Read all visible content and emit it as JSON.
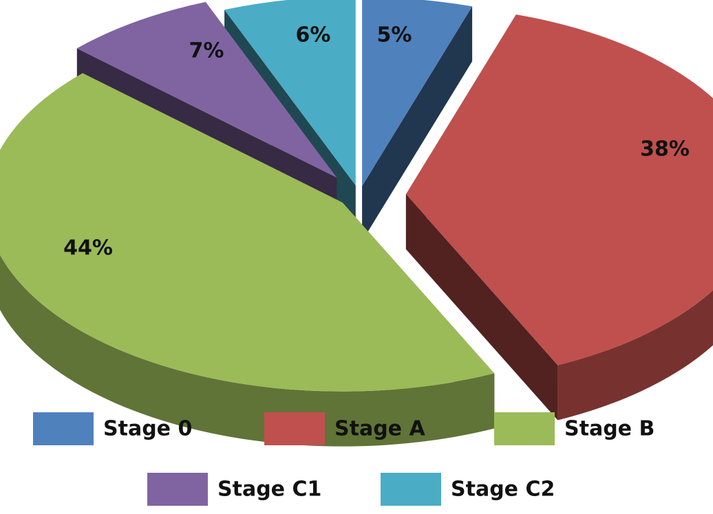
{
  "chart_data": {
    "type": "pie",
    "style": "3d-exploded",
    "title": "",
    "categories": [
      "Stage 0",
      "Stage A",
      "Stage B",
      "Stage C1",
      "Stage C2"
    ],
    "values": [
      5,
      38,
      44,
      7,
      6
    ],
    "labels": [
      "5%",
      "38%",
      "44%",
      "7%",
      "6%"
    ],
    "colors": [
      "#4F81BD",
      "#C0504D",
      "#9BBB59",
      "#8064A2",
      "#4BACC6"
    ],
    "legend": {
      "position": "bottom",
      "entries": [
        "Stage 0",
        "Stage A",
        "Stage B",
        "Stage C1",
        "Stage C2"
      ]
    }
  }
}
